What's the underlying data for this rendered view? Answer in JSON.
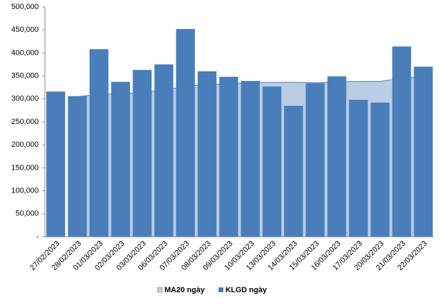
{
  "chart_data": {
    "type": "bar",
    "categories": [
      "27/02/2023",
      "28/02/2023",
      "01/03/2023",
      "02/03/2023",
      "03/03/2023",
      "06/03/2023",
      "07/03/2023",
      "08/03/2023",
      "09/03/2023",
      "10/03/2023",
      "13/03/2023",
      "14/03/2023",
      "15/03/2023",
      "16/03/2023",
      "17/03/2023",
      "20/03/2023",
      "21/03/2023",
      "22/03/2023"
    ],
    "series": [
      {
        "name": "MA20 ngày",
        "type": "area",
        "color": "#b9cde5",
        "values": [
          null,
          305000,
          310000,
          311000,
          314000,
          319000,
          327000,
          331000,
          333000,
          335000,
          336000,
          336000,
          335000,
          337000,
          338000,
          338000,
          345000,
          348000
        ]
      },
      {
        "name": "KLGD ngày",
        "type": "bar",
        "color": "#4a7ebb",
        "values": [
          316000,
          306000,
          408000,
          337000,
          363000,
          375000,
          452000,
          360000,
          348000,
          339000,
          327000,
          285000,
          334000,
          349000,
          298000,
          292000,
          414000,
          370000
        ]
      }
    ],
    "ylim": [
      0,
      500000
    ],
    "yticks": [
      {
        "value": 0,
        "label": "-"
      },
      {
        "value": 50000,
        "label": "50,000"
      },
      {
        "value": 100000,
        "label": "100,000"
      },
      {
        "value": 150000,
        "label": "150,000"
      },
      {
        "value": 200000,
        "label": "200,000"
      },
      {
        "value": 250000,
        "label": "250,000"
      },
      {
        "value": 300000,
        "label": "300,000"
      },
      {
        "value": 350000,
        "label": "350,000"
      },
      {
        "value": 400000,
        "label": "400,000"
      },
      {
        "value": 450000,
        "label": "450,000"
      },
      {
        "value": 500000,
        "label": "500,000"
      }
    ],
    "legend": "bottom"
  }
}
